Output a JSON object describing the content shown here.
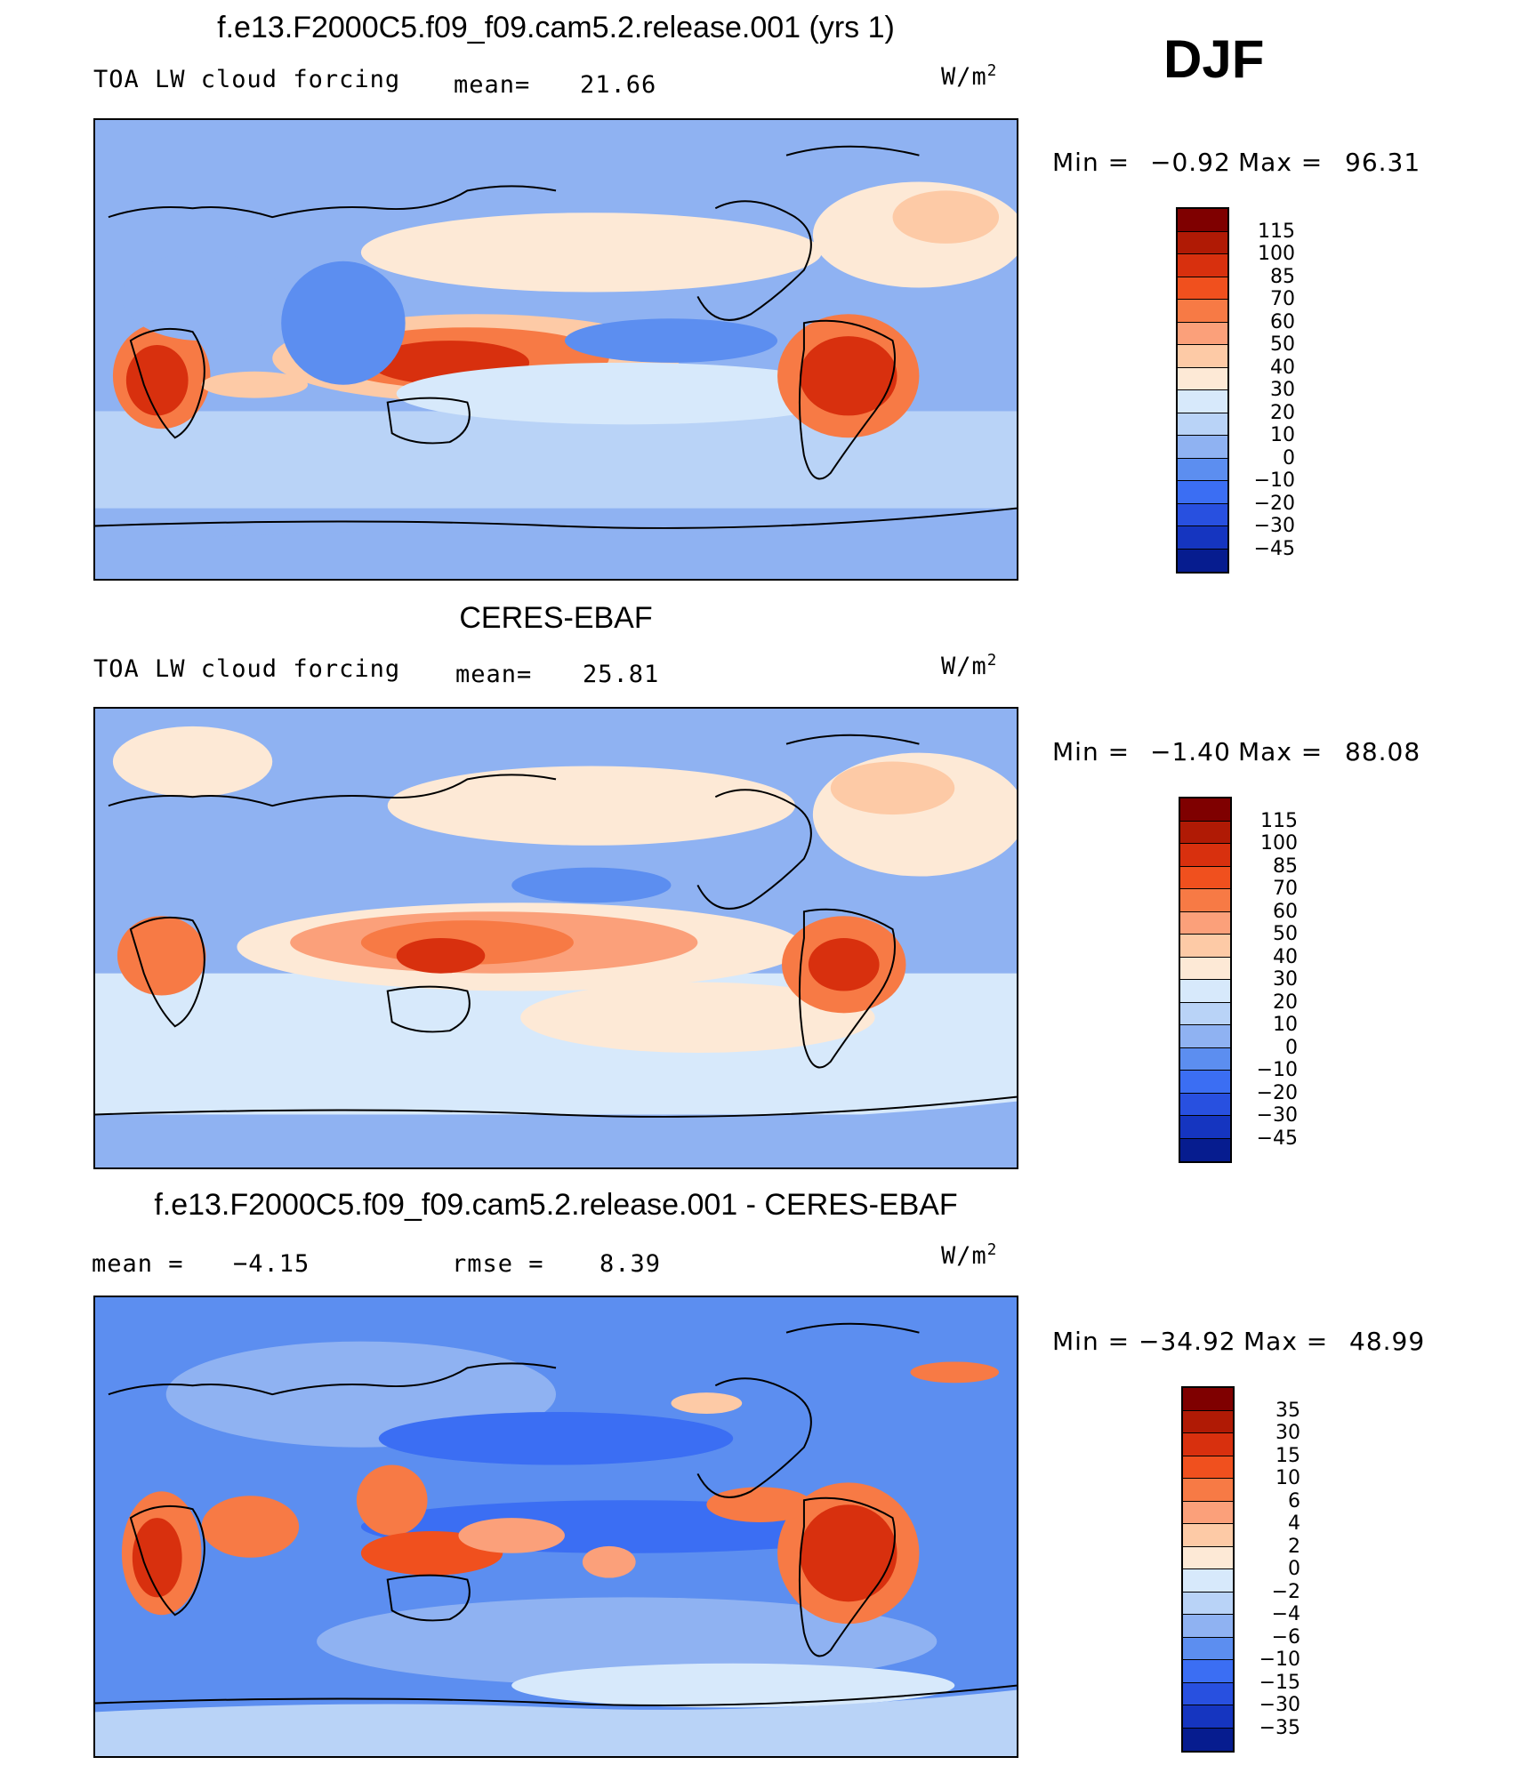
{
  "season": "DJF",
  "panels": [
    {
      "title": "f.e13.F2000C5.f09_f09.cam5.2.release.001 (yrs 1)",
      "left_label": "TOA LW cloud forcing",
      "mid_label": "mean=",
      "mid_value": "21.66",
      "units": "W/m",
      "units_exp": "2",
      "min_label": "Min =",
      "min_value": "−0.92",
      "max_label": "Max =",
      "max_value": "96.31",
      "colorbar_labels": [
        "115",
        "100",
        "85",
        "70",
        "60",
        "50",
        "40",
        "30",
        "20",
        "10",
        "0",
        "−10",
        "−20",
        "−30",
        "−45"
      ],
      "colorbar_colors": [
        "#7f0000",
        "#b01a05",
        "#d8300e",
        "#f0501e",
        "#f77a45",
        "#fba07a",
        "#fdcaa6",
        "#fde9d6",
        "#d7e9fb",
        "#b9d3f7",
        "#8fb2f2",
        "#5c8ef0",
        "#3b6ef3",
        "#2850e0",
        "#1535c0",
        "#061c8f"
      ],
      "colorbar_scale": "bipolar"
    },
    {
      "title": "CERES-EBAF",
      "left_label": "TOA LW cloud forcing",
      "mid_label": "mean=",
      "mid_value": "25.81",
      "units": "W/m",
      "units_exp": "2",
      "min_label": "Min =",
      "min_value": "−1.40",
      "max_label": "Max =",
      "max_value": "88.08",
      "colorbar_labels": [
        "115",
        "100",
        "85",
        "70",
        "60",
        "50",
        "40",
        "30",
        "20",
        "10",
        "0",
        "−10",
        "−20",
        "−30",
        "−45"
      ],
      "colorbar_colors": [
        "#7f0000",
        "#b01a05",
        "#d8300e",
        "#f0501e",
        "#f77a45",
        "#fba07a",
        "#fdcaa6",
        "#fde9d6",
        "#d7e9fb",
        "#b9d3f7",
        "#8fb2f2",
        "#5c8ef0",
        "#3b6ef3",
        "#2850e0",
        "#1535c0",
        "#061c8f"
      ],
      "colorbar_scale": "bipolar"
    },
    {
      "title": "f.e13.F2000C5.f09_f09.cam5.2.release.001 - CERES-EBAF",
      "left_label": "mean =",
      "left_value": "−4.15",
      "mid_label": "rmse =",
      "mid_value": "8.39",
      "units": "W/m",
      "units_exp": "2",
      "min_label": "Min =",
      "min_value": "−34.92",
      "max_label": "Max =",
      "max_value": "48.99",
      "colorbar_labels": [
        "35",
        "30",
        "15",
        "10",
        "6",
        "4",
        "2",
        "0",
        "−2",
        "−4",
        "−6",
        "−10",
        "−15",
        "−30",
        "−35"
      ],
      "colorbar_colors": [
        "#7f0000",
        "#b01a05",
        "#d8300e",
        "#f0501e",
        "#f77a45",
        "#fba07a",
        "#fdcaa6",
        "#fde9d6",
        "#d7e9fb",
        "#b9d3f7",
        "#8fb2f2",
        "#5c8ef0",
        "#3b6ef3",
        "#2850e0",
        "#1535c0",
        "#061c8f"
      ],
      "colorbar_scale": "bipolar"
    }
  ],
  "map_colors": {
    "ocean_low": "#8fb2f2",
    "mid": "#d7e9fb",
    "warm": "#fdcaa6",
    "hot": "#f0501e",
    "hotter": "#d8300e",
    "deep_blue": "#3b6ef3"
  }
}
